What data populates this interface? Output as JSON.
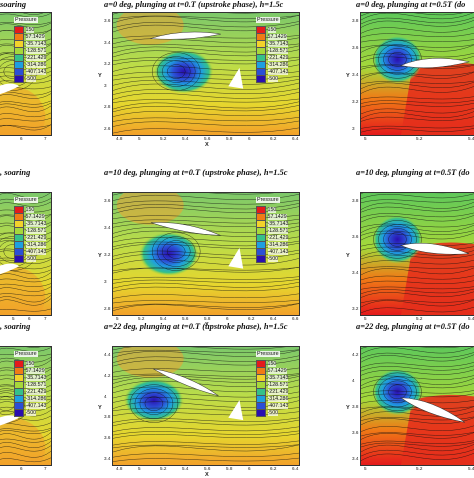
{
  "legend": {
    "title": "Pressure",
    "levels": [
      "150",
      "57.1429",
      "-35.7143",
      "-128.571",
      "-221.429",
      "-314.286",
      "-407.143",
      "-500"
    ],
    "colors": [
      "#e41a1c",
      "#f07b16",
      "#f2d22b",
      "#a6d83a",
      "#35c08a",
      "#1e9fe0",
      "#2b4fd6",
      "#2a0fb0"
    ]
  },
  "panels": [
    {
      "row": 0,
      "col": 0,
      "title": "soaring",
      "x_ticks": [
        "5",
        "6",
        "7"
      ],
      "y_ticks": [],
      "x_label": "",
      "y_label": "",
      "legend": true
    },
    {
      "row": 0,
      "col": 1,
      "title": "a=0 deg, plunging at t=0.T (upstroke phase), h=1.5c",
      "x_ticks": [
        "4.8",
        "5",
        "5.2",
        "5.4",
        "5.6",
        "5.8",
        "6",
        "6.2",
        "6.4"
      ],
      "y_ticks": [
        "3.6",
        "3.4",
        "3.2",
        "3",
        "2.8",
        "2.6"
      ],
      "x_label": "X",
      "y_label": "Y",
      "legend": true
    },
    {
      "row": 0,
      "col": 2,
      "title": "a=0 deg, plunging at t=0.5T (do",
      "x_ticks": [
        "5",
        "5.2",
        "5.4"
      ],
      "y_ticks": [
        "3.8",
        "3.6",
        "3.4",
        "3.2",
        "3"
      ],
      "x_label": "",
      "y_label": "Y",
      "legend": false
    },
    {
      "row": 1,
      "col": 0,
      "title": ", soaring",
      "x_ticks": [
        "4",
        "5",
        "6",
        "7"
      ],
      "y_ticks": [],
      "x_label": "",
      "y_label": "",
      "legend": true
    },
    {
      "row": 1,
      "col": 1,
      "title": "a=10 deg, plunging at t=0.T (upstroke phase), h=1.5c",
      "x_ticks": [
        "5",
        "5.2",
        "5.4",
        "5.6",
        "5.8",
        "6",
        "6.2",
        "6.4",
        "6.6"
      ],
      "y_ticks": [
        "3.6",
        "3.4",
        "3.2",
        "3",
        "2.8"
      ],
      "x_label": "X",
      "y_label": "Y",
      "legend": true
    },
    {
      "row": 1,
      "col": 2,
      "title": "a=10 deg, plunging at t=0.5T (do",
      "x_ticks": [
        "5",
        "5.2",
        "5.4"
      ],
      "y_ticks": [
        "3.8",
        "3.6",
        "3.4",
        "3.2"
      ],
      "x_label": "",
      "y_label": "Y",
      "legend": false
    },
    {
      "row": 2,
      "col": 0,
      "title": ", soaring",
      "x_ticks": [
        "5",
        "6",
        "7"
      ],
      "y_ticks": [],
      "x_label": "",
      "y_label": "",
      "legend": true
    },
    {
      "row": 2,
      "col": 1,
      "title": "a=22 deg, plunging at t=0.T (upstroke phase), h=1.5c",
      "x_ticks": [
        "4.8",
        "5",
        "5.2",
        "5.4",
        "5.6",
        "5.8",
        "6",
        "6.2",
        "6.4"
      ],
      "y_ticks": [
        "4.4",
        "4.2",
        "4",
        "3.8",
        "3.6",
        "3.4"
      ],
      "x_label": "X",
      "y_label": "Y",
      "legend": true
    },
    {
      "row": 2,
      "col": 2,
      "title": "a=22 deg, plunging at t=0.5T (do",
      "x_ticks": [
        "5",
        "5.2",
        "5.4"
      ],
      "y_ticks": [
        "4.2",
        "4",
        "3.8",
        "3.6",
        "3.4"
      ],
      "x_label": "",
      "y_label": "Y",
      "legend": false
    }
  ]
}
